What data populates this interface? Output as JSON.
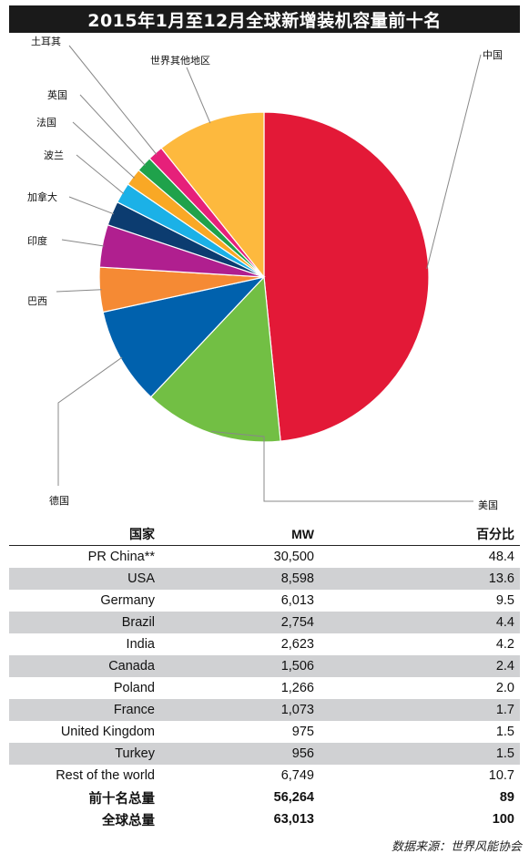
{
  "title": "2015年1月至12月全球新增装机容量前十名",
  "source": "数据来源：世界风能协会",
  "table": {
    "headers": {
      "country": "国家",
      "mw": "MW",
      "percent": "百分比"
    },
    "rows": [
      {
        "country": "PR China**",
        "mw": "30,500",
        "percent": "48.4"
      },
      {
        "country": "USA",
        "mw": "8,598",
        "percent": "13.6"
      },
      {
        "country": "Germany",
        "mw": "6,013",
        "percent": "9.5"
      },
      {
        "country": "Brazil",
        "mw": "2,754",
        "percent": "4.4"
      },
      {
        "country": "India",
        "mw": "2,623",
        "percent": "4.2"
      },
      {
        "country": "Canada",
        "mw": "1,506",
        "percent": "2.4"
      },
      {
        "country": "Poland",
        "mw": "1,266",
        "percent": "2.0"
      },
      {
        "country": "France",
        "mw": "1,073",
        "percent": "1.7"
      },
      {
        "country": "United Kingdom",
        "mw": "975",
        "percent": "1.5"
      },
      {
        "country": "Turkey",
        "mw": "956",
        "percent": "1.5"
      },
      {
        "country": "Rest of the world",
        "mw": "6,749",
        "percent": "10.7"
      }
    ],
    "totals": [
      {
        "label": "前十名总量",
        "mw": "56,264",
        "percent": "89"
      },
      {
        "label": "全球总量",
        "mw": "63,013",
        "percent": "100"
      }
    ]
  },
  "chart_data": {
    "type": "pie",
    "title": "2015年1月至12月全球新增装机容量前十名",
    "slices": [
      {
        "label": "中国",
        "value": 30500,
        "percent": 48.4,
        "color": "#e31937"
      },
      {
        "label": "美国",
        "value": 8598,
        "percent": 13.6,
        "color": "#72bf44"
      },
      {
        "label": "德国",
        "value": 6013,
        "percent": 9.5,
        "color": "#0061ad"
      },
      {
        "label": "巴西",
        "value": 2754,
        "percent": 4.4,
        "color": "#f58a34"
      },
      {
        "label": "印度",
        "value": 2623,
        "percent": 4.2,
        "color": "#b01f8f"
      },
      {
        "label": "加拿大",
        "value": 1506,
        "percent": 2.4,
        "color": "#0c3c70"
      },
      {
        "label": "波兰",
        "value": 1266,
        "percent": 2.0,
        "color": "#1bb1e7"
      },
      {
        "label": "法国",
        "value": 1073,
        "percent": 1.7,
        "color": "#f9a825"
      },
      {
        "label": "英国",
        "value": 975,
        "percent": 1.5,
        "color": "#1fa24b"
      },
      {
        "label": "土耳其",
        "value": 956,
        "percent": 1.5,
        "color": "#e6207a"
      },
      {
        "label": "世界其他地区",
        "value": 6749,
        "percent": 10.7,
        "color": "#fdb93e"
      }
    ],
    "start": "12 o'clock, clockwise"
  }
}
